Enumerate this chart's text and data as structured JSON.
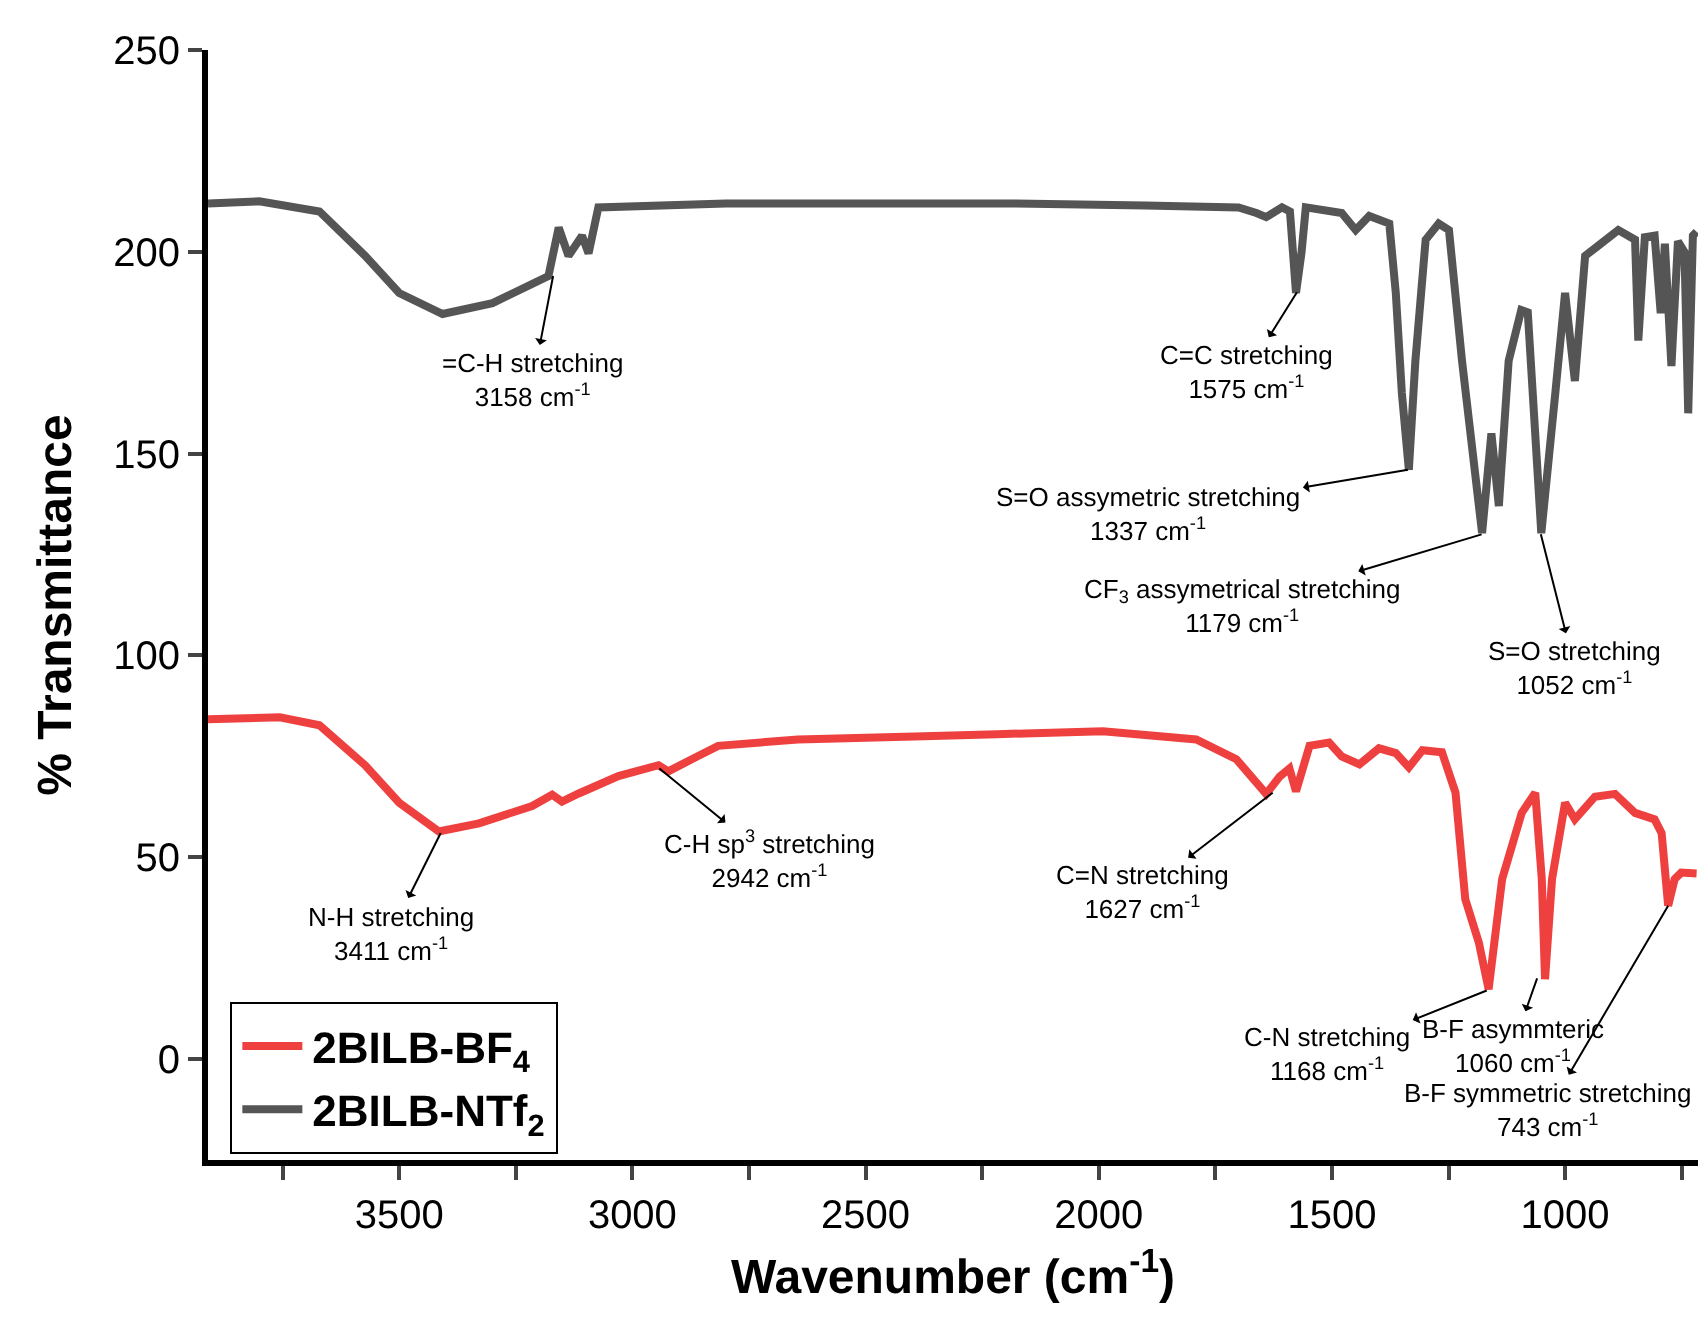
{
  "chart_data": {
    "type": "line",
    "xlabel": "Wavenumber (cm$^{-1}$)",
    "ylabel": "% Transmittance",
    "xlim": [
      3910,
      715
    ],
    "ylim": [
      -25,
      250
    ],
    "xticks": [
      {
        "value": 3750,
        "label": null
      },
      3500,
      {
        "value": 3250,
        "label": null
      },
      3000,
      {
        "value": 2750,
        "label": null
      },
      2500,
      {
        "value": 2250,
        "label": null
      },
      2000,
      {
        "value": 1750,
        "label": null
      },
      1500,
      {
        "value": 1250,
        "label": null
      },
      1000,
      {
        "value": 750,
        "label": null
      }
    ],
    "yticks": [
      0,
      50,
      100,
      150,
      200,
      250
    ],
    "grid": false,
    "legend": "bottom left",
    "line_style": "solid",
    "series": [
      {
        "name": "2BILB-BF$_{4}$",
        "color": "#ef4040",
        "x": [
          3910,
          3756,
          3671,
          3573,
          3500,
          3415,
          3329,
          3215,
          3172,
          3151,
          3115,
          3030,
          2944,
          2923,
          2859,
          2816,
          2645,
          2375,
          2218,
          1991,
          1791,
          1705,
          1641,
          1612,
          1591,
          1577,
          1548,
          1506,
          1479,
          1441,
          1399,
          1363,
          1335,
          1306,
          1264,
          1235,
          1214,
          1185,
          1164,
          1135,
          1093,
          1064,
          1050,
          1043,
          1028,
          1000,
          979,
          936,
          893,
          850,
          808,
          793,
          779,
          765,
          751,
          718
        ],
        "values": [
          84.2,
          84.7,
          82.7,
          72.8,
          63.5,
          56.4,
          58.4,
          62.7,
          65.5,
          63.8,
          65.8,
          70.1,
          72.8,
          71.3,
          75.1,
          77.6,
          79.2,
          80,
          80.5,
          81.2,
          79.2,
          74.3,
          65.7,
          70,
          72,
          66.3,
          77.6,
          78.4,
          75,
          73,
          77,
          75.8,
          72.3,
          76.5,
          76,
          66,
          39.6,
          28.9,
          17.3,
          44.6,
          61,
          66,
          44.6,
          19.8,
          44.6,
          63.5,
          59.4,
          65,
          65.7,
          61,
          59.4,
          56,
          38,
          44.6,
          46.2,
          46
        ]
      },
      {
        "name": "2BILB-NTf$_{2}$",
        "color": "#555555",
        "x": [
          3910,
          3800,
          3671,
          3573,
          3500,
          3407,
          3300,
          3180,
          3158,
          3137,
          3108,
          3094,
          3073,
          2800,
          2500,
          2200,
          1900,
          1700,
          1662,
          1641,
          1607,
          1590,
          1577,
          1565,
          1556,
          1479,
          1449,
          1420,
          1377,
          1363,
          1350,
          1335,
          1321,
          1299,
          1271,
          1249,
          1221,
          1178,
          1158,
          1142,
          1121,
          1094,
          1080,
          1051,
          1021,
          1000,
          979,
          957,
          929,
          886,
          850,
          843,
          829,
          808,
          795,
          786,
          772,
          758,
          744,
          736,
          726,
          718
        ],
        "values": [
          212,
          212.5,
          210,
          199,
          189.8,
          184.6,
          187.3,
          194,
          206,
          199,
          204,
          199.6,
          211,
          212,
          212,
          212,
          211.5,
          211,
          209.6,
          208.6,
          211,
          210,
          189.8,
          200,
          211,
          209.6,
          205.4,
          208.9,
          207,
          189.8,
          165,
          146,
          173,
          203,
          207,
          205.4,
          173,
          130.3,
          155,
          137,
          173,
          185.6,
          185,
          130.3,
          165,
          189.8,
          168,
          199,
          201.5,
          205.4,
          203,
          178,
          203.6,
          204,
          184.8,
          202,
          171.7,
          202.6,
          200,
          160,
          204,
          205
        ]
      }
    ],
    "annotations": [
      {
        "text": "=C-H stretching\n3158 cm$^{-1}$",
        "x": 3170,
        "y": 194
      },
      {
        "text": "C=C stretching\n1575 cm$^{-1}$",
        "x": 1575,
        "y": 190
      },
      {
        "text": "S=O assymetric stretching\n1337 cm$^{-1}$",
        "x": 1337,
        "y": 146
      },
      {
        "text": "CF$_{3}$ assymetrical stretching\n1179 cm$^{-1}$",
        "x": 1179,
        "y": 130
      },
      {
        "text": "S=O stretching\n1052 cm$^{-1}$",
        "x": 1052,
        "y": 130
      },
      {
        "text": "N-H stretching\n3411 cm$^{-1}$",
        "x": 3411,
        "y": 56
      },
      {
        "text": "C-H sp$^{3}$ stretching\n2942 cm$^{-1}$",
        "x": 2942,
        "y": 72
      },
      {
        "text": "C=N stretching\n1627 cm$^{-1}$",
        "x": 1627,
        "y": 66
      },
      {
        "text": "C-N stretching\n1168 cm$^{-1}$",
        "x": 1168,
        "y": 17
      },
      {
        "text": "B-F asymmteric\n1060 cm$^{-1}$",
        "x": 1060,
        "y": 20
      },
      {
        "text": "B-F symmetric stretching\n743 cm$^{-1}$",
        "x": 779,
        "y": 38
      }
    ]
  }
}
